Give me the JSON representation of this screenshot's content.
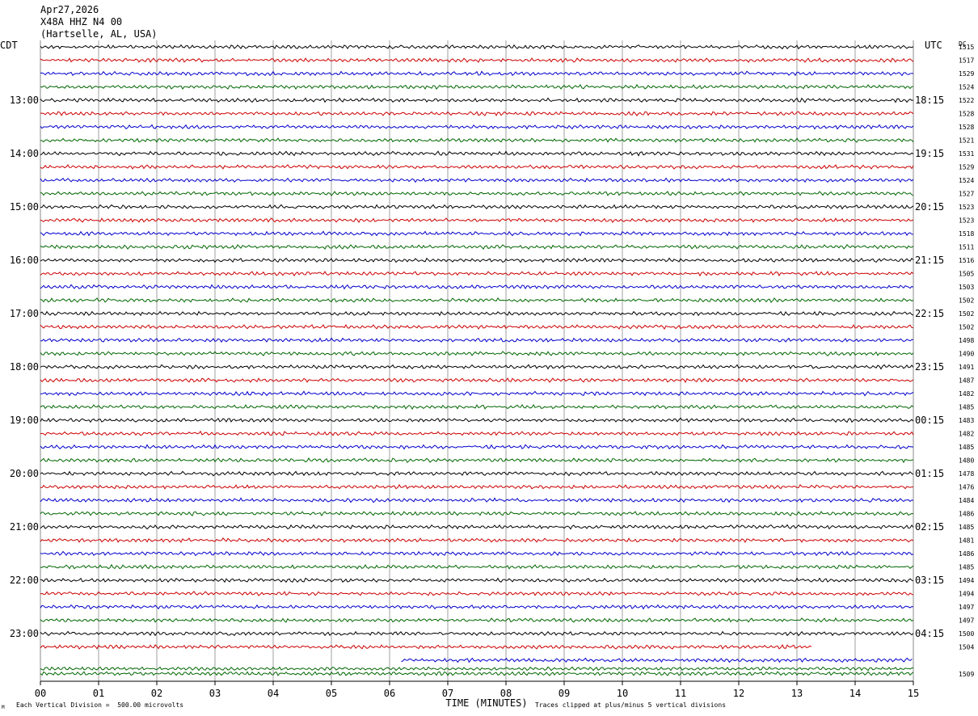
{
  "header": {
    "date": "Apr27,2026",
    "station": "X48A HHZ N4 00",
    "location": "(Hartselle, AL, USA)"
  },
  "chart_data": {
    "type": "line",
    "left_axis_label": "CDT",
    "right_axis_label": "UTC",
    "dc_label": "DC",
    "xlabel": "TIME (MINUTES)",
    "x_ticks": [
      "00",
      "01",
      "02",
      "03",
      "04",
      "05",
      "06",
      "07",
      "08",
      "09",
      "10",
      "11",
      "12",
      "13",
      "14",
      "15"
    ],
    "xlim": [
      0,
      15
    ],
    "trace_colors": [
      "#000000",
      "#cc0000",
      "#0000cc",
      "#006600"
    ],
    "hour_labels_left": [
      "13:00",
      "14:00",
      "15:00",
      "16:00",
      "17:00",
      "18:00",
      "19:00",
      "20:00",
      "21:00",
      "22:00",
      "23:00"
    ],
    "hour_labels_right": [
      "18:15",
      "19:15",
      "20:15",
      "21:15",
      "22:15",
      "23:15",
      "00:15",
      "01:15",
      "02:15",
      "03:15",
      "04:15"
    ],
    "dc_offsets": [
      "1515",
      "1517",
      "1529",
      "1524",
      "1522",
      "1528",
      "1528",
      "1521",
      "1531",
      "1529",
      "1524",
      "1527",
      "1523",
      "1523",
      "1518",
      "1511",
      "1516",
      "1505",
      "1503",
      "1502",
      "1502",
      "1502",
      "1498",
      "1490",
      "1491",
      "1487",
      "1482",
      "1485",
      "1483",
      "1482",
      "1485",
      "1480",
      "1478",
      "1476",
      "1484",
      "1486",
      "1485",
      "1481",
      "1486",
      "1485",
      "1494",
      "1494",
      "1497",
      "1497",
      "1500",
      "1504",
      "",
      ""
    ],
    "last_dc_label": "1509",
    "partial_traces": [
      {
        "index": 45,
        "start_min": 0,
        "end_min": 13.25
      },
      {
        "index": 46,
        "start_min": 6.2,
        "end_min": 15
      }
    ],
    "scale_note": "Each Vertical Division =  500.00 microvolts",
    "clip_note": "Traces clipped at plus/minus 5 vertical divisions",
    "corner_mark": "M"
  }
}
